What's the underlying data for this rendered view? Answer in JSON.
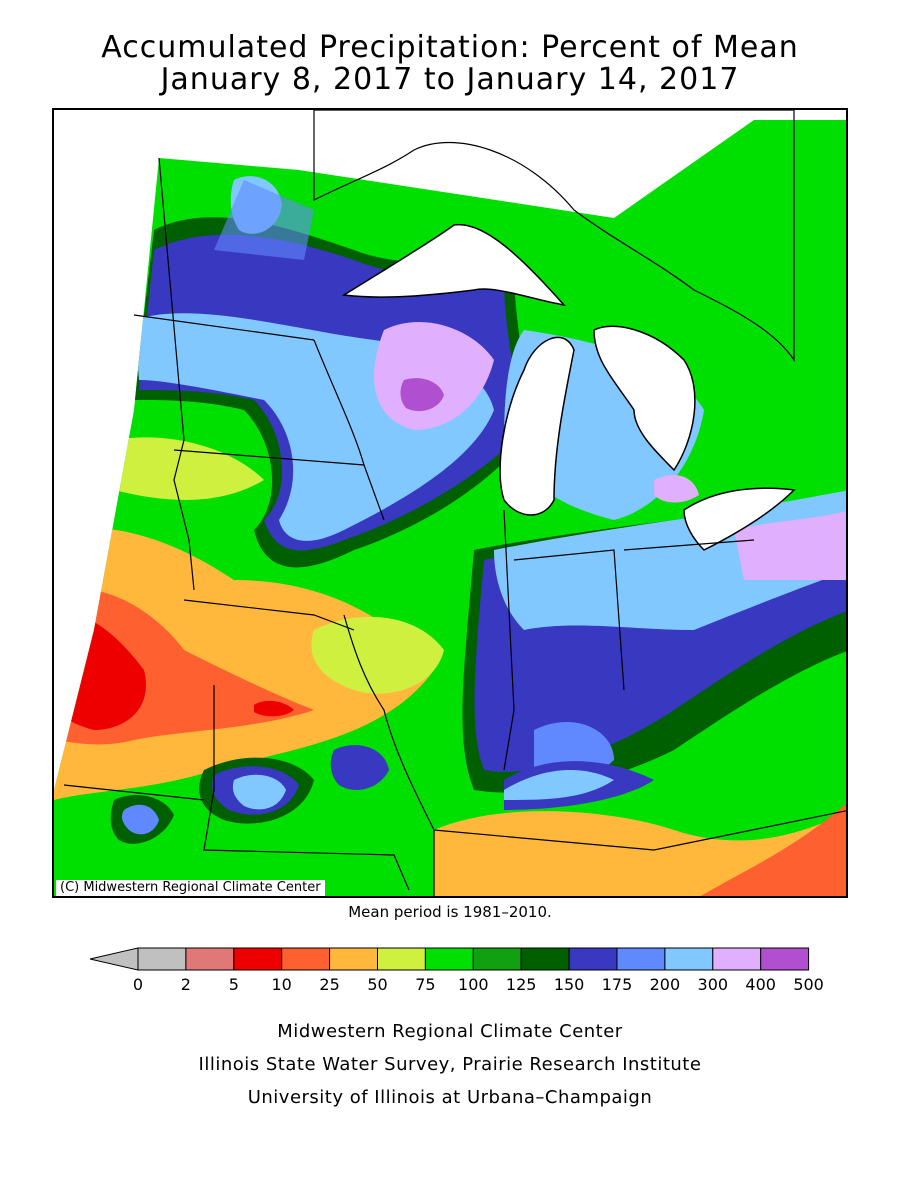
{
  "title_line1": "Accumulated Precipitation: Percent of Mean",
  "title_line2": "January 8, 2017 to January 14, 2017",
  "copyright": "(C) Midwestern Regional Climate Center",
  "mean_period": "Mean period is 1981–2010.",
  "legend": {
    "labels": [
      "0",
      "2",
      "5",
      "10",
      "25",
      "50",
      "75",
      "100",
      "125",
      "150",
      "175",
      "200",
      "300",
      "400",
      "500"
    ],
    "colors": [
      "#c0c0c0",
      "#e07878",
      "#ee0000",
      "#ff6030",
      "#ffb83c",
      "#d0f040",
      "#00e000",
      "#10a010",
      "#006000",
      "#3838c0",
      "#6088ff",
      "#80c8ff",
      "#e0b0ff",
      "#b050d0"
    ],
    "underflow_color": "#c0c0c0"
  },
  "footer": {
    "line1": "Midwestern Regional Climate Center",
    "line2": "Illinois State Water Survey, Prairie Research Institute",
    "line3": "University of Illinois at Urbana–Champaign"
  }
}
